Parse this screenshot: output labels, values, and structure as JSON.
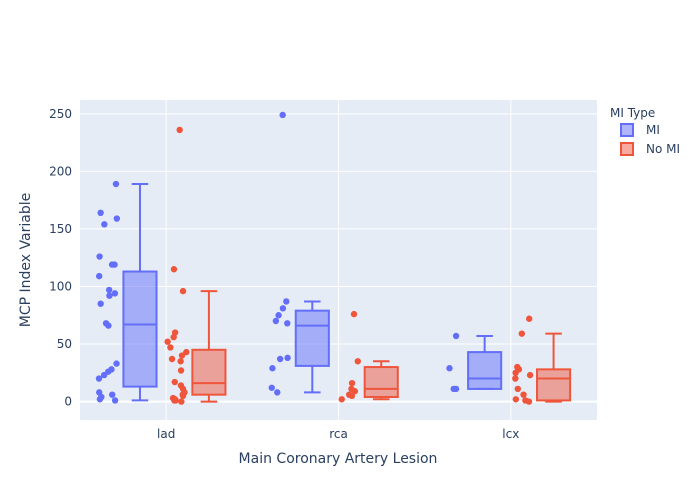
{
  "chart_data": {
    "type": "box",
    "title": "",
    "xlabel": "Main Coronary Artery Lesion",
    "ylabel": "MCP Index Variable",
    "categories": [
      "lad",
      "rca",
      "lcx"
    ],
    "ylim": [
      -16,
      262
    ],
    "yticks": [
      0,
      50,
      100,
      150,
      200,
      250
    ],
    "ytick_labels": [
      "0",
      "50",
      "100",
      "150",
      "200",
      "250"
    ],
    "grid": true,
    "legend": {
      "title": "MI Type",
      "placement": "top-right outside"
    },
    "boxmode": "group",
    "points": "all",
    "series": [
      {
        "name": "MI",
        "color": "#636efa",
        "fill": "rgba(99,110,250,0.5)",
        "boxes": [
          {
            "category": "lad",
            "min": 1,
            "q1": 13,
            "median": 67,
            "q3": 113,
            "max": 189,
            "points": [
              189,
              164,
              159,
              154,
              126,
              119,
              119,
              109,
              97,
              94,
              92,
              85,
              68,
              66,
              33,
              28,
              26,
              23,
              20,
              8,
              6,
              4,
              2,
              1
            ]
          },
          {
            "category": "rca",
            "min": 8,
            "q1": 31,
            "median": 66,
            "q3": 79,
            "max": 87,
            "points": [
              249,
              87,
              81,
              75,
              70,
              68,
              38,
              37,
              29,
              12,
              8
            ]
          },
          {
            "category": "lcx",
            "min": 11,
            "q1": 11,
            "median": 20,
            "q3": 43,
            "max": 57,
            "points": [
              57,
              29,
              11,
              11
            ]
          }
        ]
      },
      {
        "name": "No MI",
        "color": "#ef553b",
        "fill": "rgba(239,85,59,0.5)",
        "boxes": [
          {
            "category": "lad",
            "min": 0,
            "q1": 6,
            "median": 16,
            "q3": 45,
            "max": 96,
            "points": [
              236,
              115,
              96,
              60,
              56,
              52,
              47,
              43,
              40,
              37,
              35,
              27,
              17,
              14,
              11,
              8,
              6,
              5,
              3,
              2,
              1,
              1,
              0
            ]
          },
          {
            "category": "rca",
            "min": 2,
            "q1": 4,
            "median": 11,
            "q3": 30,
            "max": 35,
            "points": [
              76,
              35,
              16,
              11,
              9,
              6,
              5,
              2
            ]
          },
          {
            "category": "lcx",
            "min": 0,
            "q1": 1,
            "median": 20,
            "q3": 28,
            "max": 59,
            "points": [
              72,
              59,
              30,
              28,
              25,
              23,
              20,
              11,
              6,
              2,
              1,
              0
            ]
          }
        ]
      }
    ]
  }
}
